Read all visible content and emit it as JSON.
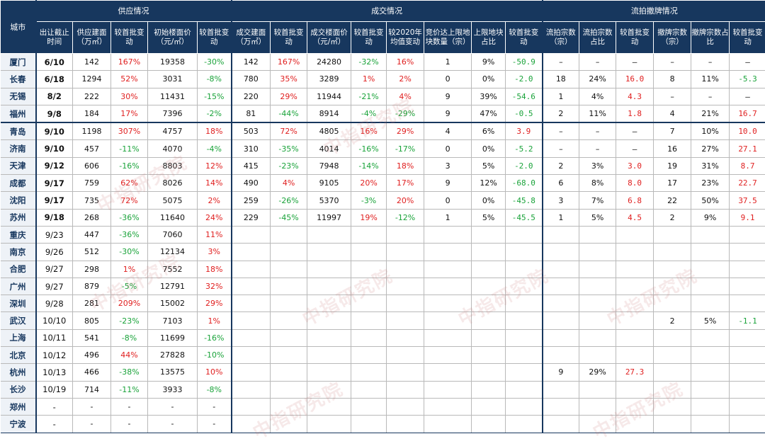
{
  "headers": {
    "city": "城市",
    "supply": "供应情况",
    "deal": "成交情况",
    "failed": "流拍撤牌情况",
    "cols": [
      "出让截止时间",
      "供应建面（万㎡）",
      "较首批变动",
      "初始楼面价（元/㎡）",
      "较首批变动",
      "成交建面（万㎡）",
      "较首批变动",
      "成交楼面价（元/㎡）",
      "较首批变动",
      "较2020年均值变动",
      "竞价达上限地块数量（宗）",
      "上限地块占比",
      "较首批变动",
      "流拍宗数（宗）",
      "流拍宗数占比",
      "较首批变动",
      "撤牌宗数（宗）",
      "撤牌宗数占比",
      "较首批变动"
    ]
  },
  "rows": [
    {
      "city": "厦门",
      "date": "6/10",
      "s_area": "142",
      "s_chg": "167%",
      "s_price": "19358",
      "s_pchg": "-30%",
      "d_area": "142",
      "d_chg": "167%",
      "d_price": "24280",
      "d_pchg": "-32%",
      "d_vs2020": "16%",
      "cap_n": "1",
      "cap_pct": "9%",
      "cap_chg": "-50.9",
      "f_n": "–",
      "f_pct": "–",
      "f_chg": "–",
      "w_n": "–",
      "w_pct": "–",
      "w_chg": "–"
    },
    {
      "city": "长春",
      "date": "6/18",
      "s_area": "1294",
      "s_chg": "52%",
      "s_price": "3031",
      "s_pchg": "-8%",
      "d_area": "780",
      "d_chg": "35%",
      "d_price": "3289",
      "d_pchg": "1%",
      "d_vs2020": "2%",
      "cap_n": "0",
      "cap_pct": "0%",
      "cap_chg": "-2.0",
      "f_n": "18",
      "f_pct": "24%",
      "f_chg": "16.0",
      "w_n": "8",
      "w_pct": "11%",
      "w_chg": "-5.3"
    },
    {
      "city": "无锡",
      "date": "8/2",
      "s_area": "222",
      "s_chg": "30%",
      "s_price": "11431",
      "s_pchg": "-15%",
      "d_area": "220",
      "d_chg": "29%",
      "d_price": "11944",
      "d_pchg": "-21%",
      "d_vs2020": "4%",
      "cap_n": "9",
      "cap_pct": "39%",
      "cap_chg": "-54.6",
      "f_n": "1",
      "f_pct": "4%",
      "f_chg": "4.3",
      "w_n": "–",
      "w_pct": "–",
      "w_chg": "–"
    },
    {
      "city": "福州",
      "date": "9/8",
      "s_area": "184",
      "s_chg": "17%",
      "s_price": "7396",
      "s_pchg": "-2%",
      "d_area": "81",
      "d_chg": "-44%",
      "d_price": "8914",
      "d_pchg": "-4%",
      "d_vs2020": "-29%",
      "cap_n": "9",
      "cap_pct": "47%",
      "cap_chg": "-0.5",
      "f_n": "2",
      "f_pct": "11%",
      "f_chg": "1.8",
      "w_n": "4",
      "w_pct": "21%",
      "w_chg": "16.7"
    },
    {
      "city": "青岛",
      "date": "9/10",
      "s_area": "1198",
      "s_chg": "307%",
      "s_price": "4757",
      "s_pchg": "18%",
      "d_area": "503",
      "d_chg": "72%",
      "d_price": "4805",
      "d_pchg": "16%",
      "d_vs2020": "29%",
      "cap_n": "4",
      "cap_pct": "6%",
      "cap_chg": "3.9",
      "f_n": "–",
      "f_pct": "–",
      "f_chg": "–",
      "w_n": "7",
      "w_pct": "10%",
      "w_chg": "10.0"
    },
    {
      "city": "济南",
      "date": "9/10",
      "s_area": "457",
      "s_chg": "-11%",
      "s_price": "4070",
      "s_pchg": "-4%",
      "d_area": "310",
      "d_chg": "-35%",
      "d_price": "4014",
      "d_pchg": "-16%",
      "d_vs2020": "-17%",
      "cap_n": "0",
      "cap_pct": "0%",
      "cap_chg": "-5.2",
      "f_n": "–",
      "f_pct": "–",
      "f_chg": "–",
      "w_n": "16",
      "w_pct": "27%",
      "w_chg": "27.1"
    },
    {
      "city": "天津",
      "date": "9/12",
      "s_area": "606",
      "s_chg": "-16%",
      "s_price": "8803",
      "s_pchg": "12%",
      "d_area": "415",
      "d_chg": "-23%",
      "d_price": "7948",
      "d_pchg": "-14%",
      "d_vs2020": "18%",
      "cap_n": "3",
      "cap_pct": "5%",
      "cap_chg": "-2.0",
      "f_n": "2",
      "f_pct": "3%",
      "f_chg": "3.0",
      "w_n": "19",
      "w_pct": "31%",
      "w_chg": "8.7"
    },
    {
      "city": "成都",
      "date": "9/17",
      "s_area": "759",
      "s_chg": "62%",
      "s_price": "8026",
      "s_pchg": "14%",
      "d_area": "490",
      "d_chg": "4%",
      "d_price": "9105",
      "d_pchg": "20%",
      "d_vs2020": "17%",
      "cap_n": "9",
      "cap_pct": "12%",
      "cap_chg": "-68.0",
      "f_n": "6",
      "f_pct": "8%",
      "f_chg": "8.0",
      "w_n": "17",
      "w_pct": "23%",
      "w_chg": "22.7"
    },
    {
      "city": "沈阳",
      "date": "9/17",
      "s_area": "735",
      "s_chg": "72%",
      "s_price": "5075",
      "s_pchg": "2%",
      "d_area": "259",
      "d_chg": "-26%",
      "d_price": "5370",
      "d_pchg": "-3%",
      "d_vs2020": "20%",
      "cap_n": "0",
      "cap_pct": "0%",
      "cap_chg": "-45.8",
      "f_n": "3",
      "f_pct": "7%",
      "f_chg": "6.8",
      "w_n": "22",
      "w_pct": "50%",
      "w_chg": "37.5"
    },
    {
      "city": "苏州",
      "date": "9/18",
      "s_area": "268",
      "s_chg": "-36%",
      "s_price": "11640",
      "s_pchg": "24%",
      "d_area": "229",
      "d_chg": "-45%",
      "d_price": "11997",
      "d_pchg": "19%",
      "d_vs2020": "-12%",
      "cap_n": "1",
      "cap_pct": "5%",
      "cap_chg": "-45.5",
      "f_n": "1",
      "f_pct": "5%",
      "f_chg": "4.5",
      "w_n": "2",
      "w_pct": "9%",
      "w_chg": "9.1"
    },
    {
      "city": "重庆",
      "date": "9/23",
      "s_area": "447",
      "s_chg": "-36%",
      "s_price": "7060",
      "s_pchg": "11%",
      "d_area": "",
      "d_chg": "",
      "d_price": "",
      "d_pchg": "",
      "d_vs2020": "",
      "cap_n": "",
      "cap_pct": "",
      "cap_chg": "",
      "f_n": "",
      "f_pct": "",
      "f_chg": "",
      "w_n": "",
      "w_pct": "",
      "w_chg": ""
    },
    {
      "city": "南京",
      "date": "9/26",
      "s_area": "512",
      "s_chg": "-30%",
      "s_price": "12134",
      "s_pchg": "3%",
      "d_area": "",
      "d_chg": "",
      "d_price": "",
      "d_pchg": "",
      "d_vs2020": "",
      "cap_n": "",
      "cap_pct": "",
      "cap_chg": "",
      "f_n": "",
      "f_pct": "",
      "f_chg": "",
      "w_n": "",
      "w_pct": "",
      "w_chg": ""
    },
    {
      "city": "合肥",
      "date": "9/27",
      "s_area": "298",
      "s_chg": "1%",
      "s_price": "7552",
      "s_pchg": "18%",
      "d_area": "",
      "d_chg": "",
      "d_price": "",
      "d_pchg": "",
      "d_vs2020": "",
      "cap_n": "",
      "cap_pct": "",
      "cap_chg": "",
      "f_n": "",
      "f_pct": "",
      "f_chg": "",
      "w_n": "",
      "w_pct": "",
      "w_chg": ""
    },
    {
      "city": "广州",
      "date": "9/27",
      "s_area": "879",
      "s_chg": "-5%",
      "s_price": "12791",
      "s_pchg": "32%",
      "d_area": "",
      "d_chg": "",
      "d_price": "",
      "d_pchg": "",
      "d_vs2020": "",
      "cap_n": "",
      "cap_pct": "",
      "cap_chg": "",
      "f_n": "",
      "f_pct": "",
      "f_chg": "",
      "w_n": "",
      "w_pct": "",
      "w_chg": ""
    },
    {
      "city": "深圳",
      "date": "9/28",
      "s_area": "281",
      "s_chg": "209%",
      "s_price": "15002",
      "s_pchg": "29%",
      "d_area": "",
      "d_chg": "",
      "d_price": "",
      "d_pchg": "",
      "d_vs2020": "",
      "cap_n": "",
      "cap_pct": "",
      "cap_chg": "",
      "f_n": "",
      "f_pct": "",
      "f_chg": "",
      "w_n": "",
      "w_pct": "",
      "w_chg": ""
    },
    {
      "city": "武汉",
      "date": "10/10",
      "s_area": "805",
      "s_chg": "-23%",
      "s_price": "7103",
      "s_pchg": "1%",
      "d_area": "",
      "d_chg": "",
      "d_price": "",
      "d_pchg": "",
      "d_vs2020": "",
      "cap_n": "",
      "cap_pct": "",
      "cap_chg": "",
      "f_n": "",
      "f_pct": "",
      "f_chg": "",
      "w_n": "2",
      "w_pct": "5%",
      "w_chg": "-1.1"
    },
    {
      "city": "上海",
      "date": "10/11",
      "s_area": "541",
      "s_chg": "-8%",
      "s_price": "11699",
      "s_pchg": "-16%",
      "d_area": "",
      "d_chg": "",
      "d_price": "",
      "d_pchg": "",
      "d_vs2020": "",
      "cap_n": "",
      "cap_pct": "",
      "cap_chg": "",
      "f_n": "",
      "f_pct": "",
      "f_chg": "",
      "w_n": "",
      "w_pct": "",
      "w_chg": ""
    },
    {
      "city": "北京",
      "date": "10/12",
      "s_area": "496",
      "s_chg": "44%",
      "s_price": "27828",
      "s_pchg": "-10%",
      "d_area": "",
      "d_chg": "",
      "d_price": "",
      "d_pchg": "",
      "d_vs2020": "",
      "cap_n": "",
      "cap_pct": "",
      "cap_chg": "",
      "f_n": "",
      "f_pct": "",
      "f_chg": "",
      "w_n": "",
      "w_pct": "",
      "w_chg": ""
    },
    {
      "city": "杭州",
      "date": "10/13",
      "s_area": "466",
      "s_chg": "-38%",
      "s_price": "13575",
      "s_pchg": "10%",
      "d_area": "",
      "d_chg": "",
      "d_price": "",
      "d_pchg": "",
      "d_vs2020": "",
      "cap_n": "",
      "cap_pct": "",
      "cap_chg": "",
      "f_n": "9",
      "f_pct": "29%",
      "f_chg": "27.3",
      "w_n": "",
      "w_pct": "",
      "w_chg": ""
    },
    {
      "city": "长沙",
      "date": "10/19",
      "s_area": "714",
      "s_chg": "-11%",
      "s_price": "3933",
      "s_pchg": "-8%",
      "d_area": "",
      "d_chg": "",
      "d_price": "",
      "d_pchg": "",
      "d_vs2020": "",
      "cap_n": "",
      "cap_pct": "",
      "cap_chg": "",
      "f_n": "",
      "f_pct": "",
      "f_chg": "",
      "w_n": "",
      "w_pct": "",
      "w_chg": ""
    },
    {
      "city": "郑州",
      "date": "-",
      "s_area": "-",
      "s_chg": "-",
      "s_price": "-",
      "s_pchg": "-",
      "d_area": "",
      "d_chg": "",
      "d_price": "",
      "d_pchg": "",
      "d_vs2020": "",
      "cap_n": "",
      "cap_pct": "",
      "cap_chg": "",
      "f_n": "",
      "f_pct": "",
      "f_chg": "",
      "w_n": "",
      "w_pct": "",
      "w_chg": ""
    },
    {
      "city": "宁波",
      "date": "-",
      "s_area": "-",
      "s_chg": "-",
      "s_price": "-",
      "s_pchg": "-",
      "d_area": "",
      "d_chg": "",
      "d_price": "",
      "d_pchg": "",
      "d_vs2020": "",
      "cap_n": "",
      "cap_pct": "",
      "cap_chg": "",
      "f_n": "",
      "f_pct": "",
      "f_chg": "",
      "w_n": "",
      "w_pct": "",
      "w_chg": ""
    }
  ],
  "watermark": "中指研究院",
  "colors": {
    "header_bg": "#17375e",
    "positive": "#e02020",
    "negative": "#1aa33a"
  }
}
